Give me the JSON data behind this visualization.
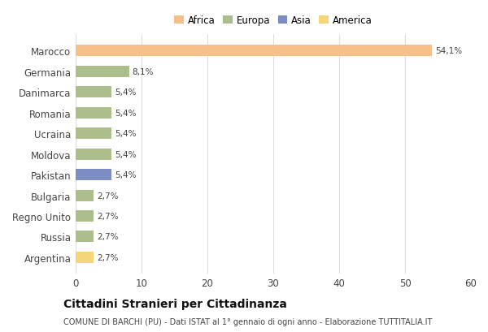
{
  "countries": [
    "Marocco",
    "Germania",
    "Danimarca",
    "Romania",
    "Ucraina",
    "Moldova",
    "Pakistan",
    "Bulgaria",
    "Regno Unito",
    "Russia",
    "Argentina"
  ],
  "values": [
    54.1,
    8.1,
    5.4,
    5.4,
    5.4,
    5.4,
    5.4,
    2.7,
    2.7,
    2.7,
    2.7
  ],
  "labels": [
    "54,1%",
    "8,1%",
    "5,4%",
    "5,4%",
    "5,4%",
    "5,4%",
    "5,4%",
    "2,7%",
    "2,7%",
    "2,7%",
    "2,7%"
  ],
  "colors": [
    "#F5C08A",
    "#ABBE8B",
    "#ABBE8B",
    "#ABBE8B",
    "#ABBE8B",
    "#ABBE8B",
    "#7B8DC2",
    "#ABBE8B",
    "#ABBE8B",
    "#ABBE8B",
    "#F5D57A"
  ],
  "legend_labels": [
    "Africa",
    "Europa",
    "Asia",
    "America"
  ],
  "legend_colors": [
    "#F5C08A",
    "#ABBE8B",
    "#7B8DC2",
    "#F5D57A"
  ],
  "xlim": [
    0,
    60
  ],
  "xticks": [
    0,
    10,
    20,
    30,
    40,
    50,
    60
  ],
  "title": "Cittadini Stranieri per Cittadinanza",
  "subtitle": "COMUNE DI BARCHI (PU) - Dati ISTAT al 1° gennaio di ogni anno - Elaborazione TUTTITALIA.IT",
  "bg_color": "#FFFFFF",
  "grid_color": "#DDDDDD",
  "bar_height": 0.55
}
